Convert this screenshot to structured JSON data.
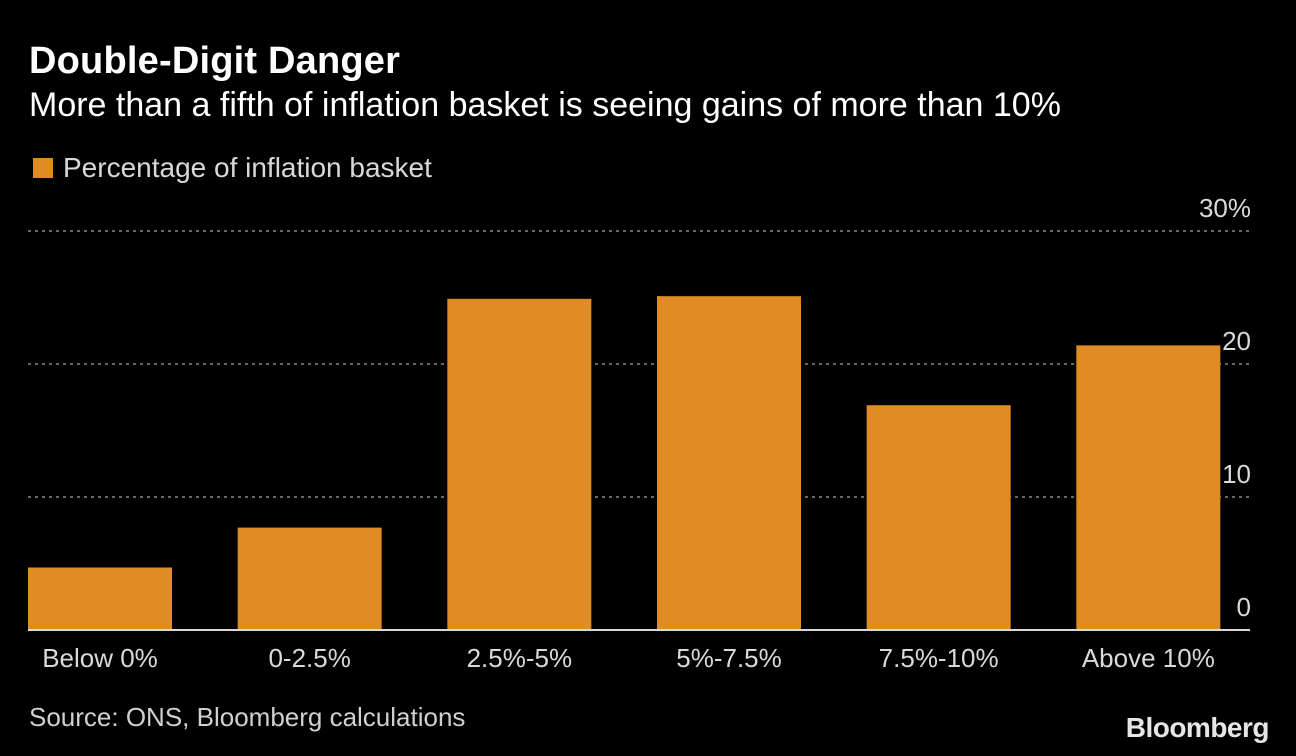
{
  "title": "Double-Digit Danger",
  "subtitle": "More than a fifth of inflation basket is seeing gains of more than 10%",
  "legend": {
    "label": "Percentage of inflation basket"
  },
  "source": "Source: ONS, Bloomberg calculations",
  "brand": "Bloomberg",
  "colors": {
    "bar": "#E08C24",
    "background": "#000000",
    "grid": "#8a8a8a",
    "axis": "#d8d8d8",
    "text": "#d9d9d9"
  },
  "chart_data": {
    "type": "bar",
    "title": "Double-Digit Danger",
    "subtitle": "More than a fifth of inflation basket is seeing gains of more than 10%",
    "categories": [
      "Below 0%",
      "0-2.5%",
      "2.5%-5%",
      "5%-7.5%",
      "7.5%-10%",
      "Above 10%"
    ],
    "series": [
      {
        "name": "Percentage of inflation basket",
        "values": [
          4.7,
          7.7,
          24.9,
          25.1,
          16.9,
          21.4
        ]
      }
    ],
    "ylim": [
      0,
      30
    ],
    "yticks": [
      0,
      10,
      20,
      30
    ],
    "ytick_labels": [
      "0",
      "10",
      "20",
      "30%"
    ],
    "grid": true,
    "legend_position": "top-left",
    "xlabel": "",
    "ylabel": ""
  }
}
